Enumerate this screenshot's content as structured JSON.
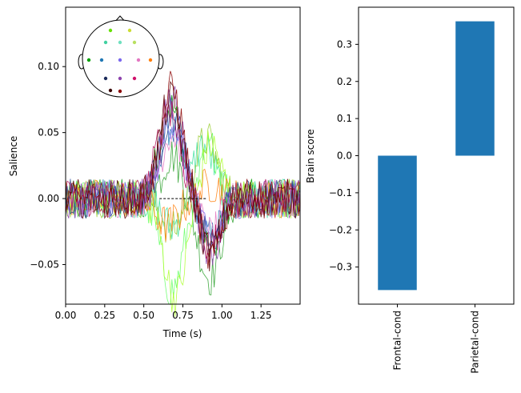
{
  "chart_data": [
    {
      "type": "line",
      "title": "",
      "xlabel": "Time (s)",
      "ylabel": "Salience",
      "xlim": [
        0.0,
        1.5
      ],
      "ylim": [
        -0.08,
        0.145
      ],
      "xticks": [
        "0.00",
        "0.25",
        "0.50",
        "0.75",
        "1.00",
        "1.25"
      ],
      "xtick_values": [
        0.0,
        0.25,
        0.5,
        0.75,
        1.0,
        1.25
      ],
      "yticks": [
        "−0.05",
        "0.00",
        "0.05",
        "0.10"
      ],
      "ytick_values": [
        -0.05,
        0.0,
        0.05,
        0.1
      ],
      "grid": false,
      "series_note_unlabeled": true,
      "series": [
        {
          "color": "#00a000",
          "peak_time": 0.67,
          "peak": 0.07
        },
        {
          "color": "#1f77b4",
          "peak_time": 0.67,
          "peak": 0.055
        },
        {
          "color": "#2ca02c",
          "peak_time": 0.92,
          "peak": -0.06
        },
        {
          "color": "#40e0a0",
          "peak_time": 0.88,
          "peak": 0.04
        },
        {
          "color": "#66ff66",
          "peak_time": 0.68,
          "peak": -0.07
        },
        {
          "color": "#9acd32",
          "peak_time": 0.9,
          "peak": 0.045
        },
        {
          "color": "#adff2f",
          "peak_time": 0.7,
          "peak": -0.075
        },
        {
          "color": "#ff7f0e",
          "peak_time": 0.65,
          "peak": -0.02
        },
        {
          "color": "#e377c2",
          "peak_time": 0.68,
          "peak": 0.05
        },
        {
          "color": "#7b68ee",
          "peak_time": 0.68,
          "peak": 0.06
        },
        {
          "color": "#1b3a8a",
          "peak_time": 0.68,
          "peak": 0.065
        },
        {
          "color": "#8e44ad",
          "peak_time": 0.68,
          "peak": 0.075
        },
        {
          "color": "#b0105a",
          "peak_time": 0.66,
          "peak": 0.07
        },
        {
          "color": "#8b0000",
          "peak_time": 0.68,
          "peak": 0.083
        },
        {
          "color": "#5a0000",
          "peak_time": 0.67,
          "peak": 0.075
        }
      ],
      "sensor_colors": [
        "#66e000",
        "#ccdd33",
        "#40d0a0",
        "#70e0c0",
        "#b8e060",
        "#00a000",
        "#1f77b4",
        "#7b68ee",
        "#e377c2",
        "#ff7f0e",
        "#1b2a5a",
        "#8e44ad",
        "#d0106a",
        "#3a0000",
        "#8b0000"
      ]
    },
    {
      "type": "bar",
      "title": "",
      "xlabel": "",
      "ylabel": "Brain score",
      "categories": [
        "Frontal-cond",
        "Parietal-cond"
      ],
      "values": [
        -0.362,
        0.362
      ],
      "ylim": [
        -0.4,
        0.4
      ],
      "yticks": [
        "−0.3",
        "−0.2",
        "−0.1",
        "0.0",
        "0.1",
        "0.2",
        "0.3"
      ],
      "ytick_values": [
        -0.3,
        -0.2,
        -0.1,
        0.0,
        0.1,
        0.2,
        0.3
      ],
      "bar_color": "#1f77b4",
      "grid": false
    }
  ]
}
